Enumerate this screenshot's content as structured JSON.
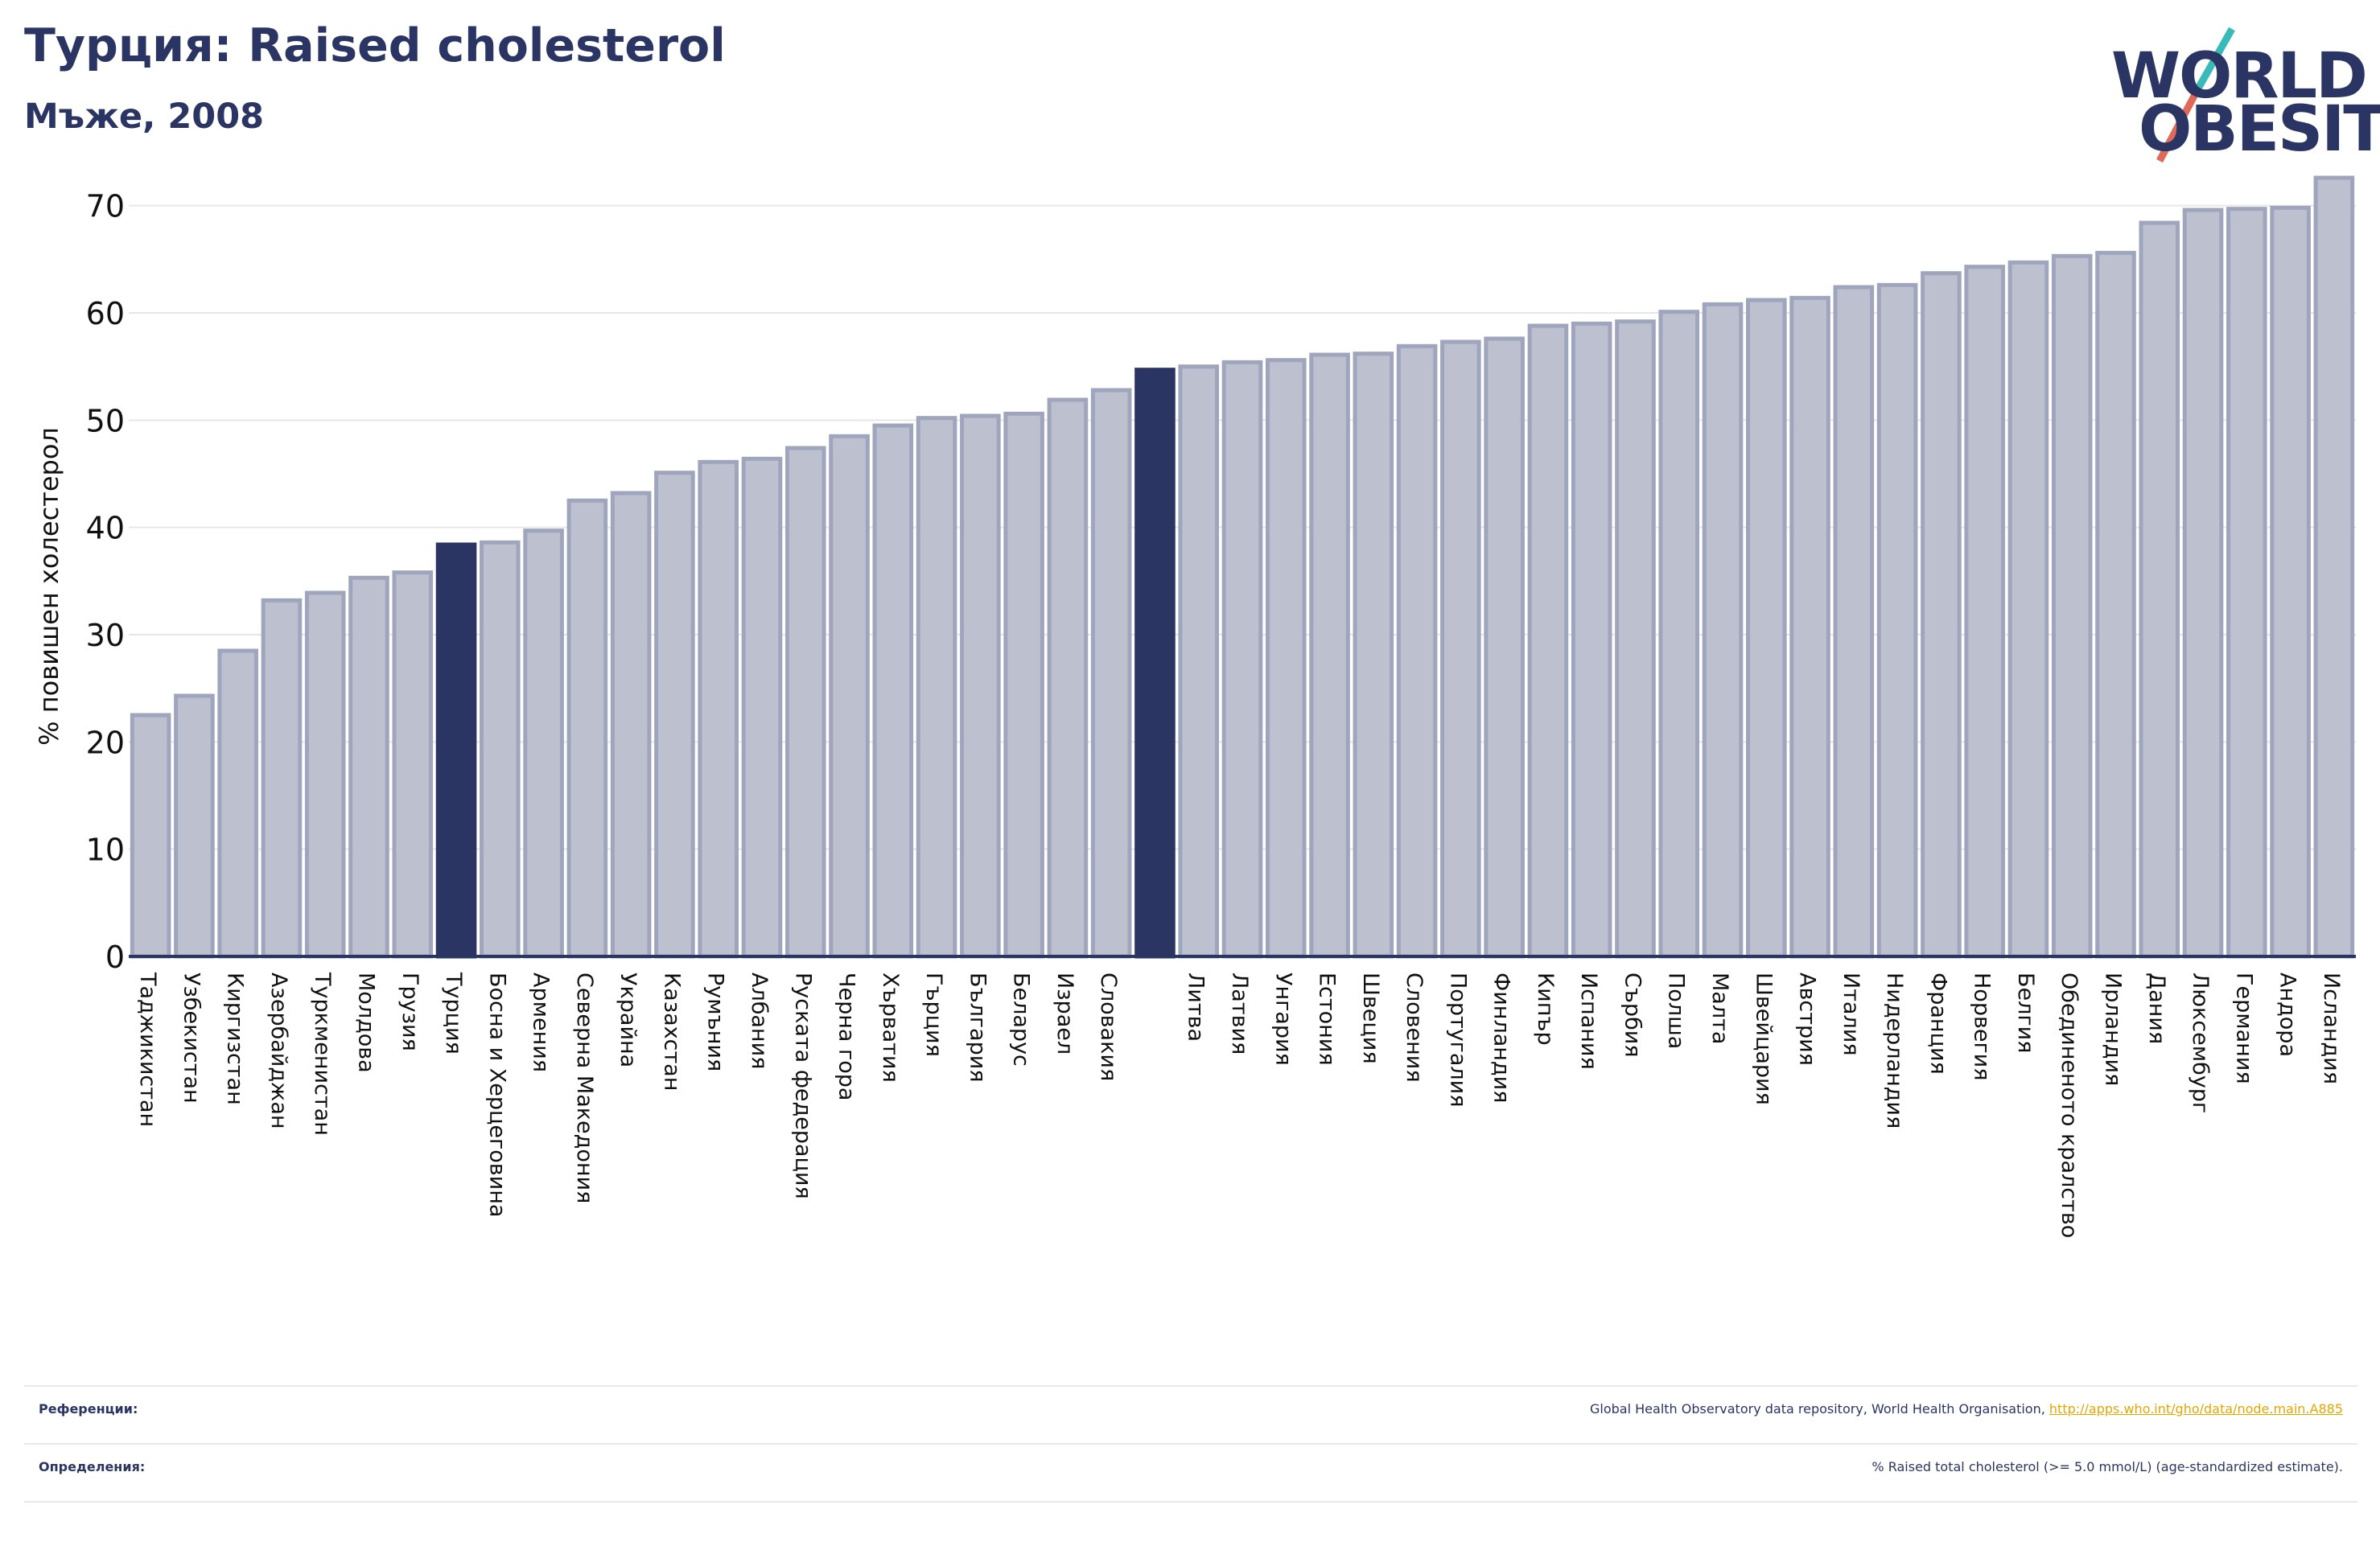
{
  "header": {
    "title": "Турция: Raised cholesterol",
    "subtitle": "Мъже, 2008"
  },
  "logo": {
    "line1": "WORLD",
    "line2": "OBESITY",
    "slash_color_top": "#3ab9b9",
    "slash_color_bottom": "#e06a5a"
  },
  "colors": {
    "bar_fill": "#bcc0cf",
    "bar_stroke": "#9fa5bd",
    "highlight": "#2b3563",
    "grid": "#e6e6e6",
    "axis": "#2b3563"
  },
  "chart_data": {
    "type": "bar",
    "ylabel": "% повишен холестерол",
    "ylim": [
      0,
      75
    ],
    "yticks": [
      0,
      10,
      20,
      30,
      40,
      50,
      60,
      70
    ],
    "grid": true,
    "categories": [
      "Таджикистан",
      "Узбекистан",
      "Киргизстан",
      "Азербайджан",
      "Туркменистан",
      "Молдова",
      "Грузия",
      "Турция",
      "Босна и Херцеговина",
      "Армения",
      "Северна Македония",
      "Украйна",
      "Казахстан",
      "Румъния",
      "Албания",
      "Руската федерация",
      "Черна гора",
      "Хърватия",
      "Гърция",
      "България",
      "Беларус",
      "Израел",
      "Словакия",
      "",
      "Литва",
      "Латвия",
      "Унгария",
      "Естония",
      "Швеция",
      "Словения",
      "Португалия",
      "Финландия",
      "Кипър",
      "Испания",
      "Сърбия",
      "Полша",
      "Малта",
      "Швейцария",
      "Австрия",
      "Италия",
      "Нидерландия",
      "Франция",
      "Норвегия",
      "Белгия",
      "Обединеното кралство",
      "Ирландия",
      "Дания",
      "Люксембург",
      "Германия",
      "Андора",
      "Исландия"
    ],
    "values": [
      22.5,
      24.3,
      28.5,
      33.2,
      33.9,
      35.3,
      35.8,
      38.4,
      38.6,
      39.7,
      42.5,
      43.2,
      45.1,
      46.1,
      46.4,
      47.4,
      48.5,
      49.5,
      50.2,
      50.4,
      50.6,
      51.9,
      52.8,
      54.7,
      55.0,
      55.4,
      55.6,
      56.1,
      56.2,
      56.9,
      57.3,
      57.6,
      58.8,
      59.0,
      59.2,
      60.1,
      60.8,
      61.2,
      61.4,
      62.4,
      62.6,
      63.7,
      64.3,
      64.7,
      65.3,
      65.6,
      68.4,
      69.6,
      69.7,
      69.8,
      72.6
    ],
    "highlighted": [
      7,
      23
    ]
  },
  "footer": {
    "references_label": "Референции:",
    "references_text": "Global Health Observatory data repository, World Health Organisation, ",
    "references_link": "http://apps.who.int/gho/data/node.main.A885",
    "definitions_label": "Определения:",
    "definitions_text": "% Raised total cholesterol (>= 5.0 mmol/L) (age-standardized estimate)."
  }
}
